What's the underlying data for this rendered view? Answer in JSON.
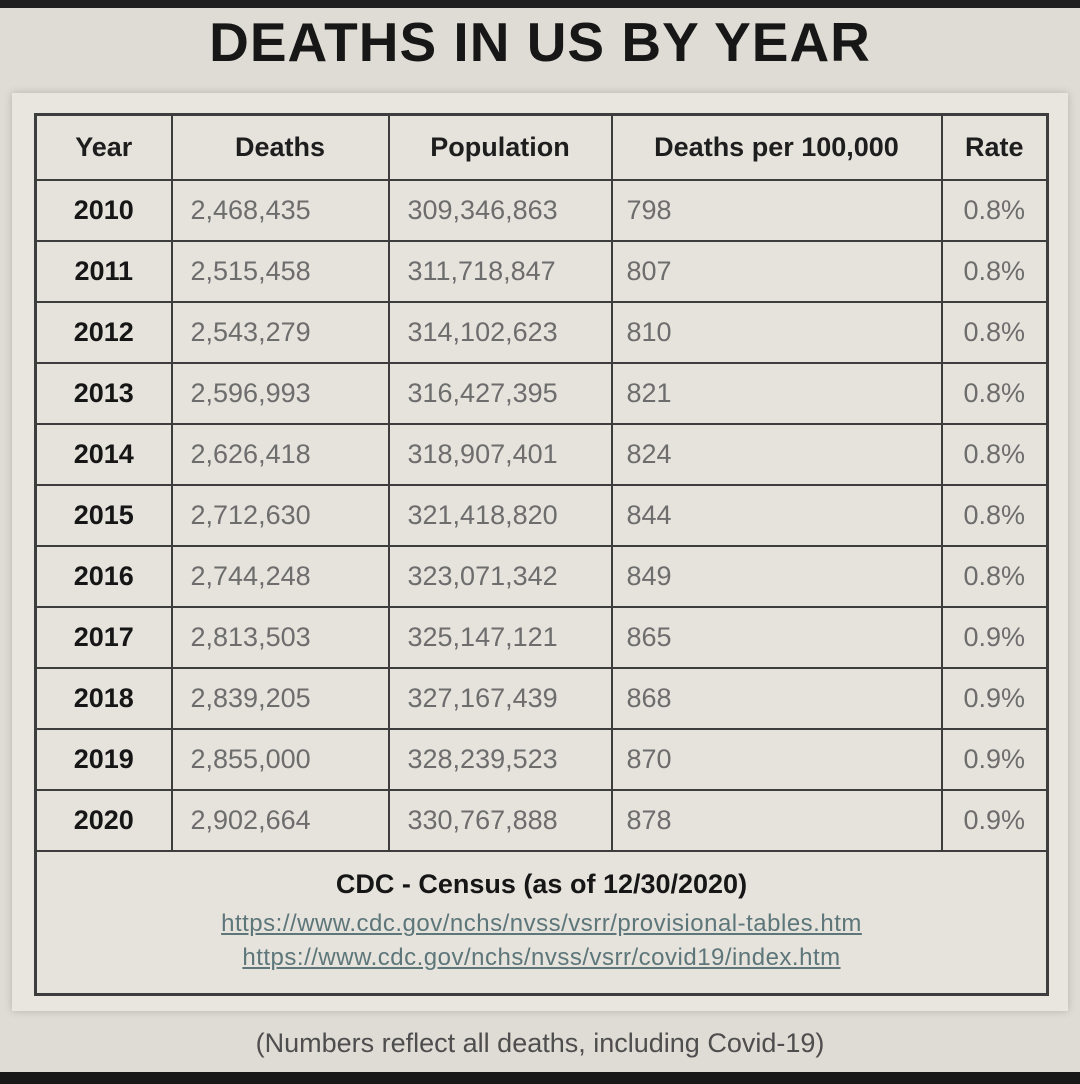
{
  "title": "DEATHS IN US BY YEAR",
  "table": {
    "headers": [
      "Year",
      "Deaths",
      "Population",
      "Deaths per 100,000",
      "Rate"
    ],
    "rows": [
      [
        "2010",
        "2,468,435",
        "309,346,863",
        "798",
        "0.8%"
      ],
      [
        "2011",
        "2,515,458",
        "311,718,847",
        "807",
        "0.8%"
      ],
      [
        "2012",
        "2,543,279",
        "314,102,623",
        "810",
        "0.8%"
      ],
      [
        "2013",
        "2,596,993",
        "316,427,395",
        "821",
        "0.8%"
      ],
      [
        "2014",
        "2,626,418",
        "318,907,401",
        "824",
        "0.8%"
      ],
      [
        "2015",
        "2,712,630",
        "321,418,820",
        "844",
        "0.8%"
      ],
      [
        "2016",
        "2,744,248",
        "323,071,342",
        "849",
        "0.8%"
      ],
      [
        "2017",
        "2,813,503",
        "325,147,121",
        "865",
        "0.9%"
      ],
      [
        "2018",
        "2,839,205",
        "327,167,439",
        "868",
        "0.9%"
      ],
      [
        "2019",
        "2,855,000",
        "328,239,523",
        "870",
        "0.9%"
      ],
      [
        "2020",
        "2,902,664",
        "330,767,888",
        "878",
        "0.9%"
      ]
    ],
    "source": "CDC - Census (as of 12/30/2020)",
    "links": [
      "https://www.cdc.gov/nchs/nvss/vsrr/provisional-tables.htm",
      "https://www.cdc.gov/nchs/nvss/vsrr/covid19/index.htm"
    ]
  },
  "caption": "(Numbers reflect all deaths, including Covid-19)",
  "colors": {
    "page_background": "#dfdbd5",
    "panel_background": "#e9e6e0",
    "border": "#3d3d3d",
    "data_text": "#6d6d6d",
    "link_text": "#5d767a",
    "strip": "#1f1f1f"
  },
  "chart_data": {
    "type": "table",
    "title": "DEATHS IN US BY YEAR",
    "columns": [
      "Year",
      "Deaths",
      "Population",
      "Deaths per 100,000",
      "Rate"
    ],
    "rows": [
      [
        2010,
        2468435,
        309346863,
        798,
        "0.8%"
      ],
      [
        2011,
        2515458,
        311718847,
        807,
        "0.8%"
      ],
      [
        2012,
        2543279,
        314102623,
        810,
        "0.8%"
      ],
      [
        2013,
        2596993,
        316427395,
        821,
        "0.8%"
      ],
      [
        2014,
        2626418,
        318907401,
        824,
        "0.8%"
      ],
      [
        2015,
        2712630,
        321418820,
        844,
        "0.8%"
      ],
      [
        2016,
        2744248,
        323071342,
        849,
        "0.8%"
      ],
      [
        2017,
        2813503,
        325147121,
        865,
        "0.9%"
      ],
      [
        2018,
        2839205,
        327167439,
        868,
        "0.9%"
      ],
      [
        2019,
        2855000,
        328239523,
        870,
        "0.9%"
      ],
      [
        2020,
        2902664,
        330767888,
        878,
        "0.9%"
      ]
    ],
    "source": "CDC - Census (as of 12/30/2020)",
    "notes": "(Numbers reflect all deaths, including Covid-19)"
  }
}
